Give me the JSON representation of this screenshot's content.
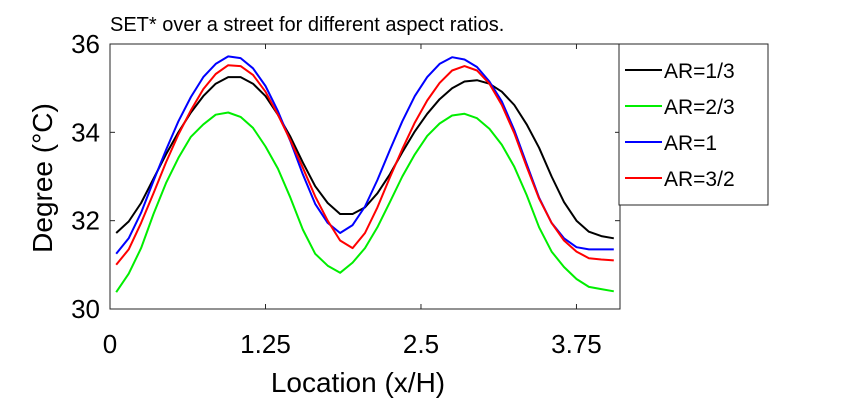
{
  "chart_data": {
    "type": "line",
    "title": "SET* over a street for different aspect ratios.",
    "xlabel": "Location (x/H)",
    "ylabel": "Degree (°C)",
    "xlim": [
      0,
      4.1
    ],
    "ylim": [
      30,
      36
    ],
    "xticks": [
      0,
      1.25,
      2.5,
      3.75
    ],
    "xtick_labels": [
      "0",
      "1.25",
      "2.5",
      "3.75"
    ],
    "yticks": [
      30,
      32,
      34,
      36
    ],
    "ytick_labels": [
      "30",
      "32",
      "34",
      "36"
    ],
    "grid": false,
    "legend_position": "outside-right",
    "x": [
      0.05,
      0.15,
      0.25,
      0.35,
      0.45,
      0.55,
      0.65,
      0.75,
      0.85,
      0.95,
      1.05,
      1.15,
      1.25,
      1.35,
      1.45,
      1.55,
      1.65,
      1.75,
      1.85,
      1.95,
      2.05,
      2.15,
      2.25,
      2.35,
      2.45,
      2.55,
      2.65,
      2.75,
      2.85,
      2.95,
      3.05,
      3.15,
      3.25,
      3.35,
      3.45,
      3.55,
      3.65,
      3.75,
      3.85,
      3.95,
      4.05
    ],
    "series": [
      {
        "name": "AR=1/3",
        "color": "#000000",
        "values": [
          31.72,
          31.98,
          32.4,
          32.95,
          33.5,
          34.0,
          34.45,
          34.82,
          35.1,
          35.25,
          35.25,
          35.1,
          34.82,
          34.4,
          33.9,
          33.32,
          32.78,
          32.4,
          32.15,
          32.15,
          32.3,
          32.62,
          33.05,
          33.55,
          34.02,
          34.42,
          34.75,
          35.0,
          35.15,
          35.18,
          35.1,
          34.92,
          34.62,
          34.18,
          33.65,
          33.0,
          32.42,
          32.0,
          31.75,
          31.65,
          31.6
        ]
      },
      {
        "name": "AR=2/3",
        "color": "#00ee00",
        "values": [
          30.38,
          30.8,
          31.38,
          32.15,
          32.85,
          33.42,
          33.9,
          34.18,
          34.4,
          34.45,
          34.35,
          34.1,
          33.68,
          33.18,
          32.52,
          31.8,
          31.25,
          30.98,
          30.82,
          31.05,
          31.38,
          31.85,
          32.42,
          33.0,
          33.5,
          33.92,
          34.2,
          34.38,
          34.42,
          34.32,
          34.08,
          33.72,
          33.22,
          32.58,
          31.85,
          31.3,
          30.95,
          30.68,
          30.5,
          30.45,
          30.4
        ]
      },
      {
        "name": "AR=1",
        "color": "#0000ff",
        "values": [
          31.25,
          31.6,
          32.18,
          32.9,
          33.6,
          34.25,
          34.8,
          35.25,
          35.55,
          35.72,
          35.68,
          35.45,
          35.05,
          34.48,
          33.8,
          33.05,
          32.38,
          31.95,
          31.72,
          31.9,
          32.32,
          32.92,
          33.6,
          34.25,
          34.82,
          35.25,
          35.55,
          35.7,
          35.65,
          35.48,
          35.15,
          34.7,
          34.05,
          33.28,
          32.52,
          31.95,
          31.6,
          31.4,
          31.35,
          31.35,
          31.35
        ]
      },
      {
        "name": "AR=3/2",
        "color": "#ff0000",
        "values": [
          31.0,
          31.35,
          31.95,
          32.62,
          33.32,
          33.95,
          34.5,
          34.98,
          35.32,
          35.52,
          35.5,
          35.3,
          34.92,
          34.4,
          33.82,
          33.2,
          32.55,
          32.0,
          31.55,
          31.38,
          31.72,
          32.3,
          32.98,
          33.62,
          34.22,
          34.72,
          35.12,
          35.4,
          35.5,
          35.4,
          35.1,
          34.62,
          33.98,
          33.22,
          32.5,
          31.95,
          31.55,
          31.3,
          31.15,
          31.12,
          31.1
        ]
      }
    ]
  }
}
